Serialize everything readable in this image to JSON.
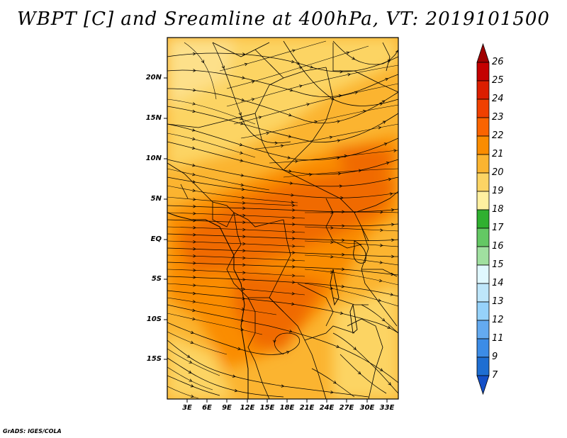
{
  "title": "WBPT [C] and Sreamline at 400hPa, VT: 2019101500",
  "credit": "GrADS: IGES/COLA",
  "y_axis_labels": [
    "20N",
    "15N",
    "10N",
    "5N",
    "EQ",
    "5S",
    "10S",
    "15S"
  ],
  "x_axis_labels": [
    "3E",
    "6E",
    "9E",
    "12E",
    "15E",
    "18E",
    "21E",
    "24E",
    "27E",
    "30E",
    "33E"
  ],
  "colorbar": {
    "labels": [
      "26",
      "25",
      "24",
      "23",
      "22",
      "21",
      "20",
      "19",
      "18",
      "17",
      "16",
      "15",
      "14",
      "13",
      "12",
      "11",
      "9",
      "7"
    ],
    "colors": [
      "#a00000",
      "#c40000",
      "#dc1e00",
      "#f04000",
      "#fa6400",
      "#fa8c00",
      "#fbb430",
      "#fcd464",
      "#fff0a0",
      "#30b030",
      "#64c864",
      "#a0e0a0",
      "#e0f8ff",
      "#bee6fa",
      "#96d2fa",
      "#64aaf0",
      "#3c8ce6",
      "#1e6ed2",
      "#1450c8"
    ]
  }
}
